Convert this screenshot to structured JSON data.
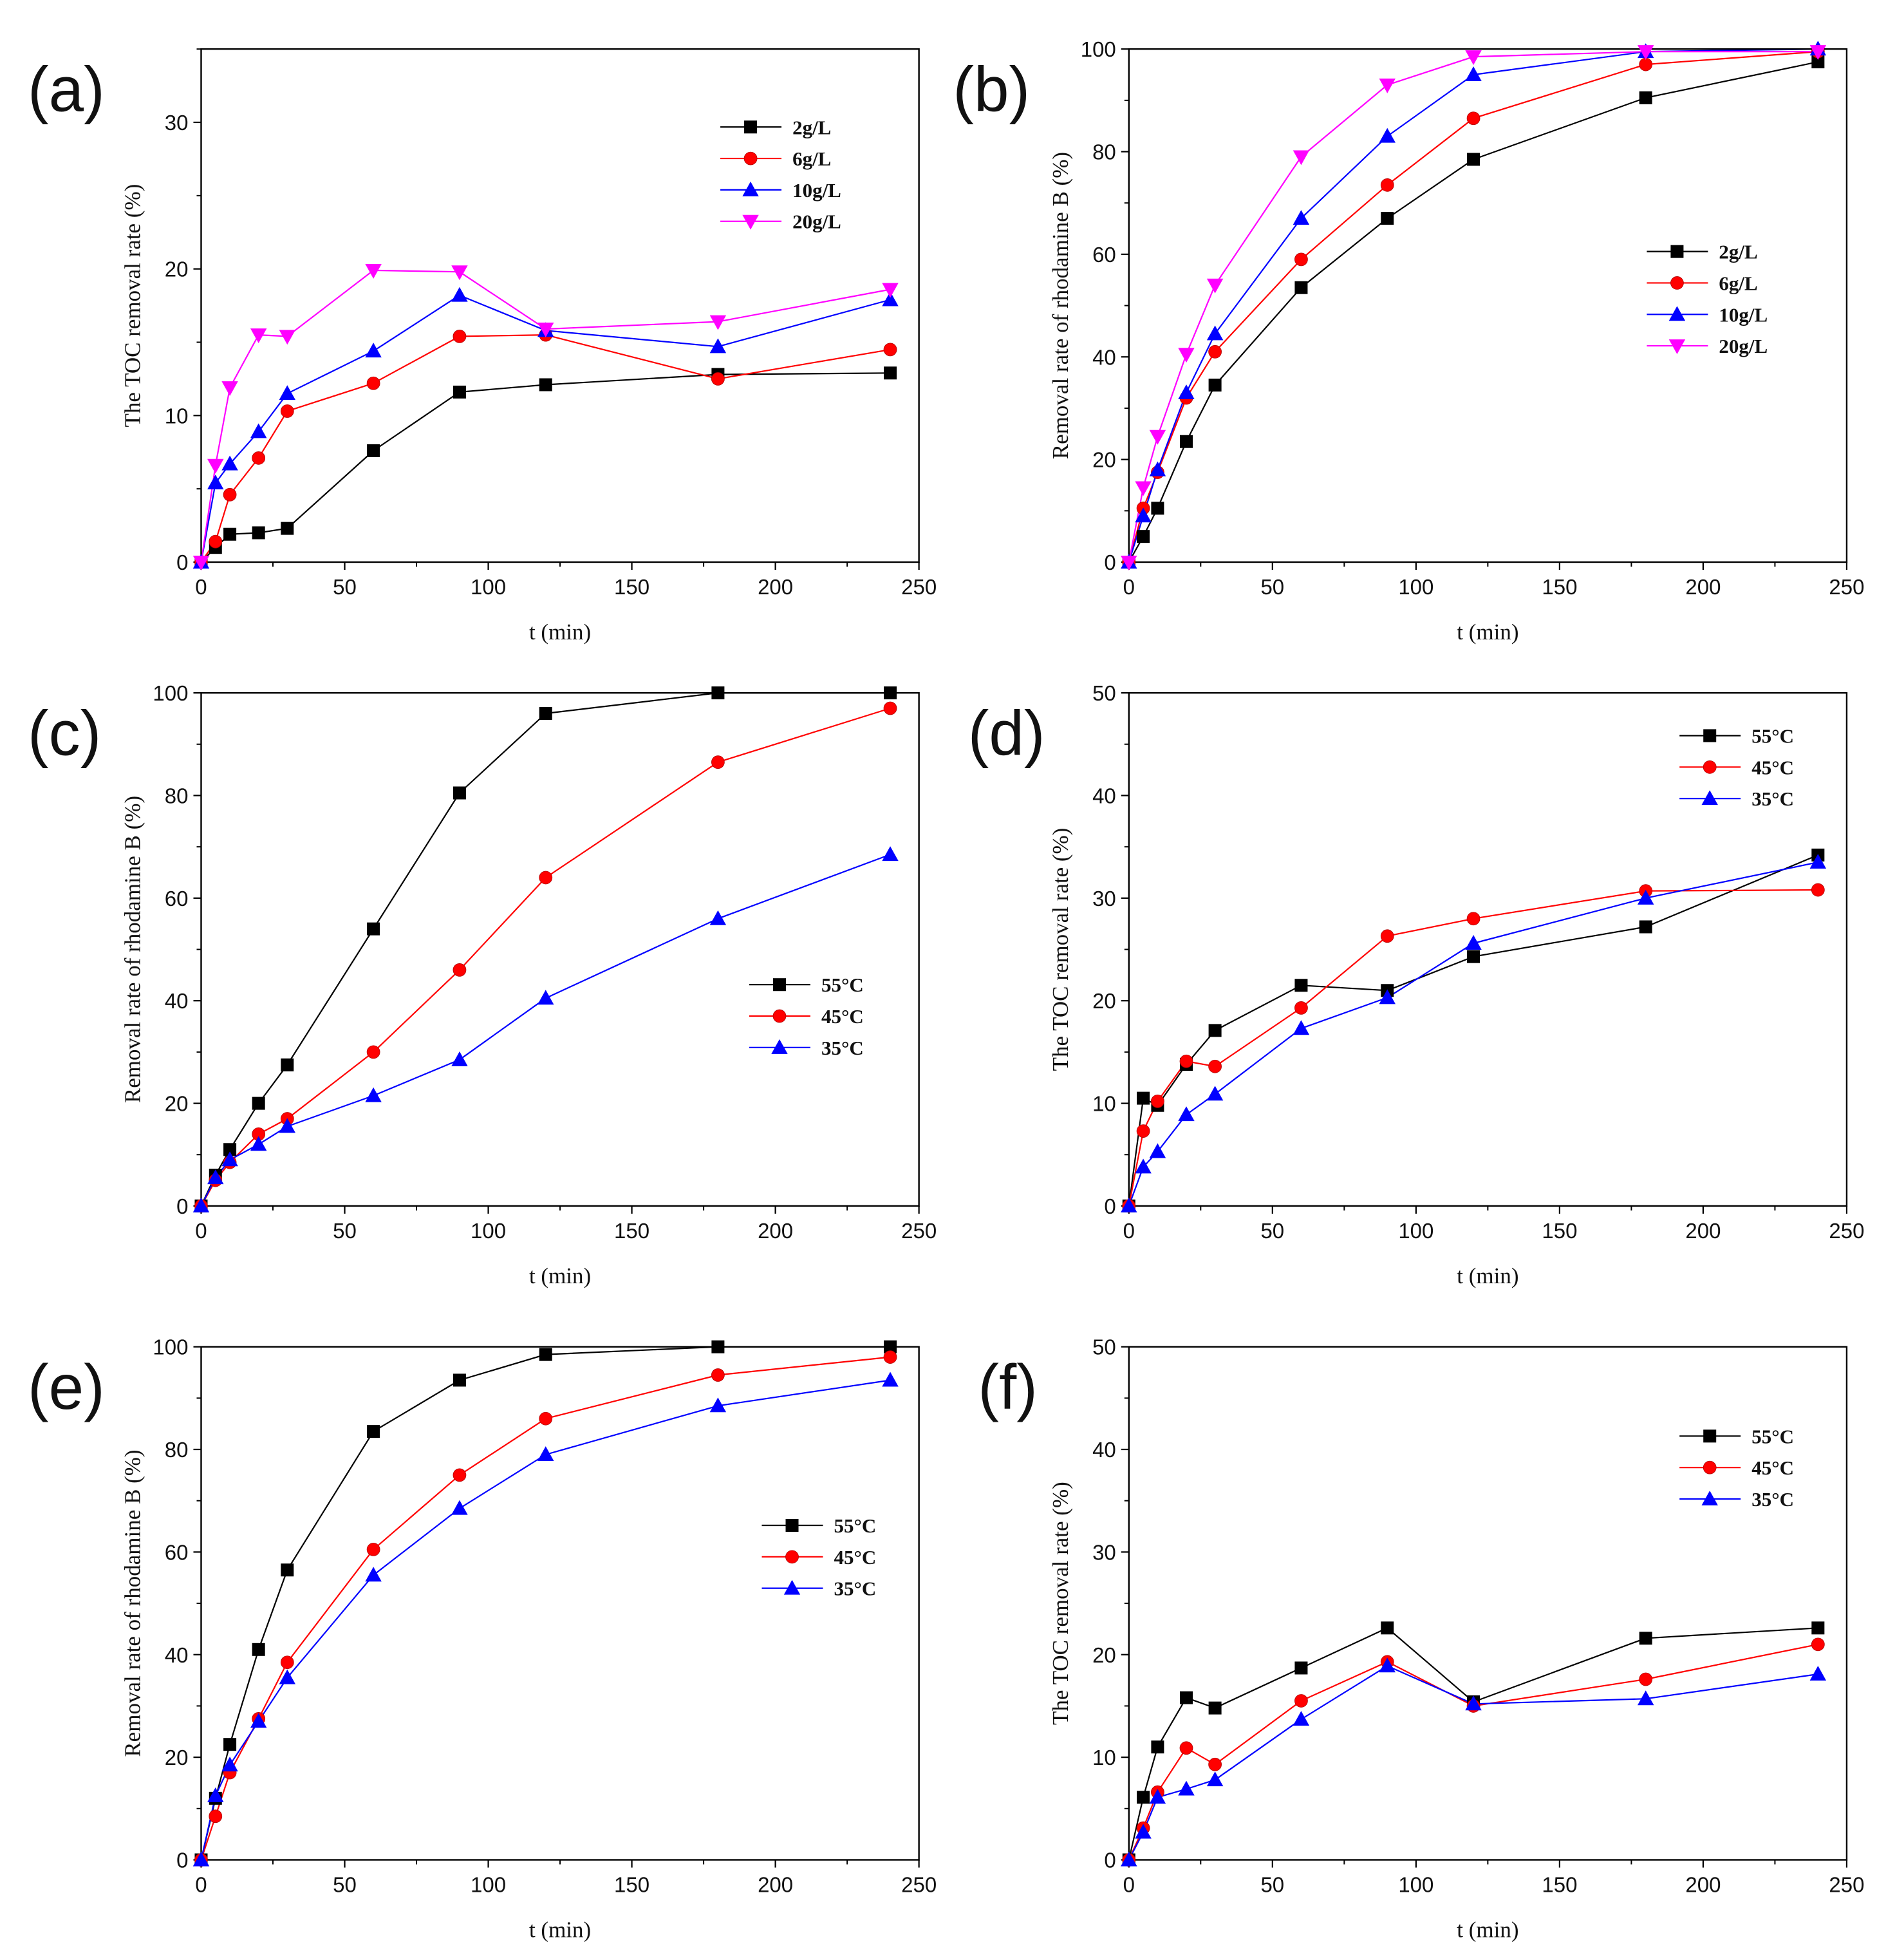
{
  "chart_data": [
    {
      "id": "a",
      "panel_label": "(a)",
      "type": "line",
      "xlabel": "t (min)",
      "ylabel": "The TOC removal rate (%)",
      "xlim": [
        0,
        250
      ],
      "ylim": [
        0,
        35
      ],
      "xticks": [
        0,
        50,
        100,
        150,
        200,
        250
      ],
      "yticks": [
        0,
        10,
        20,
        30
      ],
      "legend_position": "upper-right",
      "series": [
        {
          "name": "2g/L",
          "color": "#000000",
          "marker": "square",
          "x": [
            0,
            5,
            10,
            20,
            30,
            60,
            90,
            120,
            180,
            240
          ],
          "y": [
            0,
            1.0,
            1.9,
            2.0,
            2.3,
            7.6,
            11.6,
            12.1,
            12.8,
            12.9
          ]
        },
        {
          "name": "6g/L",
          "color": "#ff0000",
          "marker": "circle",
          "x": [
            0,
            5,
            10,
            20,
            30,
            60,
            90,
            120,
            180,
            240
          ],
          "y": [
            0,
            1.4,
            4.6,
            7.1,
            10.3,
            12.2,
            15.4,
            15.5,
            12.5,
            14.5
          ]
        },
        {
          "name": "10g/L",
          "color": "#0000ff",
          "marker": "triangle-up",
          "x": [
            0,
            5,
            10,
            20,
            30,
            60,
            90,
            120,
            180,
            240
          ],
          "y": [
            0,
            5.4,
            6.7,
            8.9,
            11.5,
            14.4,
            18.2,
            15.8,
            14.7,
            17.9
          ]
        },
        {
          "name": "20g/L",
          "color": "#ff00ff",
          "marker": "triangle-down",
          "x": [
            0,
            5,
            10,
            20,
            30,
            60,
            90,
            120,
            180,
            240
          ],
          "y": [
            0,
            6.6,
            11.9,
            15.5,
            15.4,
            19.9,
            19.8,
            15.9,
            16.4,
            18.6
          ]
        }
      ]
    },
    {
      "id": "b",
      "panel_label": "(b)",
      "type": "line",
      "xlabel": "t (min)",
      "ylabel": "Removal rate of rhodamine B (%)",
      "xlim": [
        0,
        250
      ],
      "ylim": [
        0,
        100
      ],
      "xticks": [
        0,
        50,
        100,
        150,
        200,
        250
      ],
      "yticks": [
        0,
        20,
        40,
        60,
        80,
        100
      ],
      "legend_position": "center-right",
      "series": [
        {
          "name": "2g/L",
          "color": "#000000",
          "marker": "square",
          "x": [
            0,
            5,
            10,
            20,
            30,
            60,
            90,
            120,
            180,
            240
          ],
          "y": [
            0,
            5,
            10.5,
            23.5,
            34.5,
            53.5,
            67,
            78.5,
            90.5,
            97.5
          ]
        },
        {
          "name": "6g/L",
          "color": "#ff0000",
          "marker": "circle",
          "x": [
            0,
            5,
            10,
            20,
            30,
            60,
            90,
            120,
            180,
            240
          ],
          "y": [
            0,
            10.5,
            17.5,
            32,
            41,
            59,
            73.5,
            86.5,
            97,
            99.5
          ]
        },
        {
          "name": "10g/L",
          "color": "#0000ff",
          "marker": "triangle-up",
          "x": [
            0,
            5,
            10,
            20,
            30,
            60,
            90,
            120,
            180,
            240
          ],
          "y": [
            0,
            9,
            18,
            33,
            44.5,
            67,
            83,
            95,
            99.5,
            100
          ]
        },
        {
          "name": "20g/L",
          "color": "#ff00ff",
          "marker": "triangle-down",
          "x": [
            0,
            5,
            10,
            20,
            30,
            60,
            90,
            120,
            180,
            240
          ],
          "y": [
            0,
            14.5,
            24.5,
            40.5,
            54,
            79,
            93,
            98.5,
            99.5,
            99.5
          ]
        }
      ]
    },
    {
      "id": "c",
      "panel_label": "(c)",
      "type": "line",
      "xlabel": "t (min)",
      "ylabel": "Removal rate of rhodamine B (%)",
      "xlim": [
        0,
        250
      ],
      "ylim": [
        0,
        100
      ],
      "xticks": [
        0,
        50,
        100,
        150,
        200,
        250
      ],
      "yticks": [
        0,
        20,
        40,
        60,
        80,
        100
      ],
      "legend_position": "center-right",
      "series": [
        {
          "name": "55°C",
          "color": "#000000",
          "marker": "square",
          "x": [
            0,
            5,
            10,
            20,
            30,
            60,
            90,
            120,
            180,
            240
          ],
          "y": [
            0,
            6,
            11,
            20,
            27.5,
            54,
            80.5,
            96,
            100,
            100
          ]
        },
        {
          "name": "45°C",
          "color": "#ff0000",
          "marker": "circle",
          "x": [
            0,
            5,
            10,
            20,
            30,
            60,
            90,
            120,
            180,
            240
          ],
          "y": [
            0,
            5,
            8.5,
            14,
            17,
            30,
            46,
            64,
            86.5,
            97
          ]
        },
        {
          "name": "35°C",
          "color": "#0000ff",
          "marker": "triangle-up",
          "x": [
            0,
            5,
            10,
            20,
            30,
            60,
            90,
            120,
            180,
            240
          ],
          "y": [
            0,
            5.5,
            9,
            12,
            15.5,
            21.5,
            28.5,
            40.5,
            56,
            68.5
          ]
        }
      ]
    },
    {
      "id": "d",
      "panel_label": "(d)",
      "type": "line",
      "xlabel": "t (min)",
      "ylabel": "The TOC removal rate (%)",
      "xlim": [
        0,
        250
      ],
      "ylim": [
        0,
        50
      ],
      "xticks": [
        0,
        50,
        100,
        150,
        200,
        250
      ],
      "yticks": [
        0,
        10,
        20,
        30,
        40,
        50
      ],
      "legend_position": "upper-right",
      "series": [
        {
          "name": "55°C",
          "color": "#000000",
          "marker": "square",
          "x": [
            0,
            5,
            10,
            20,
            30,
            60,
            90,
            120,
            180,
            240
          ],
          "y": [
            0,
            10.5,
            9.8,
            13.8,
            17.1,
            21.5,
            21,
            24.3,
            27.2,
            34.2
          ]
        },
        {
          "name": "45°C",
          "color": "#ff0000",
          "marker": "circle",
          "x": [
            0,
            5,
            10,
            20,
            30,
            60,
            90,
            120,
            180,
            240
          ],
          "y": [
            0,
            7.3,
            10.2,
            14.1,
            13.6,
            19.3,
            26.3,
            28,
            30.7,
            30.8
          ]
        },
        {
          "name": "35°C",
          "color": "#0000ff",
          "marker": "triangle-up",
          "x": [
            0,
            5,
            10,
            20,
            30,
            60,
            90,
            120,
            180,
            240
          ],
          "y": [
            0,
            3.8,
            5.3,
            8.9,
            10.9,
            17.3,
            20.3,
            25.6,
            30,
            33.5
          ]
        }
      ]
    },
    {
      "id": "e",
      "panel_label": "(e)",
      "type": "line",
      "xlabel": "t (min)",
      "ylabel": "Removal rate of rhodamine B (%)",
      "xlim": [
        0,
        250
      ],
      "ylim": [
        0,
        100
      ],
      "xticks": [
        0,
        50,
        100,
        150,
        200,
        250
      ],
      "yticks": [
        0,
        20,
        40,
        60,
        80,
        100
      ],
      "legend_position": "center-right",
      "series": [
        {
          "name": "55°C",
          "color": "#000000",
          "marker": "square",
          "x": [
            0,
            5,
            10,
            20,
            30,
            60,
            90,
            120,
            180,
            240
          ],
          "y": [
            0,
            12,
            22.5,
            41,
            56.5,
            83.5,
            93.5,
            98.5,
            100,
            100
          ]
        },
        {
          "name": "45°C",
          "color": "#ff0000",
          "marker": "circle",
          "x": [
            0,
            5,
            10,
            20,
            30,
            60,
            90,
            120,
            180,
            240
          ],
          "y": [
            0,
            8.5,
            17,
            27.5,
            38.5,
            60.5,
            75,
            86,
            94.5,
            98
          ]
        },
        {
          "name": "35°C",
          "color": "#0000ff",
          "marker": "triangle-up",
          "x": [
            0,
            5,
            10,
            20,
            30,
            60,
            90,
            120,
            180,
            240
          ],
          "y": [
            0,
            12.5,
            18.5,
            27,
            35.5,
            55.5,
            68.5,
            79,
            88.5,
            93.5
          ]
        }
      ]
    },
    {
      "id": "f",
      "panel_label": "(f)",
      "type": "line",
      "xlabel": "t (min)",
      "ylabel": "The TOC removal rate (%)",
      "xlim": [
        0,
        250
      ],
      "ylim": [
        0,
        50
      ],
      "xticks": [
        0,
        50,
        100,
        150,
        200,
        250
      ],
      "yticks": [
        0,
        10,
        20,
        30,
        40,
        50
      ],
      "legend_position": "upper-right",
      "series": [
        {
          "name": "55°C",
          "color": "#000000",
          "marker": "square",
          "x": [
            0,
            5,
            10,
            20,
            30,
            60,
            90,
            120,
            180,
            240
          ],
          "y": [
            0,
            6.1,
            11,
            15.8,
            14.8,
            18.7,
            22.6,
            15.4,
            21.6,
            22.6
          ]
        },
        {
          "name": "45°C",
          "color": "#ff0000",
          "marker": "circle",
          "x": [
            0,
            5,
            10,
            20,
            30,
            60,
            90,
            120,
            180,
            240
          ],
          "y": [
            0,
            3.1,
            6.6,
            10.9,
            9.3,
            15.5,
            19.3,
            15,
            17.6,
            21
          ]
        },
        {
          "name": "35°C",
          "color": "#0000ff",
          "marker": "triangle-up",
          "x": [
            0,
            5,
            10,
            20,
            30,
            60,
            90,
            120,
            180,
            240
          ],
          "y": [
            0,
            2.7,
            6.1,
            6.9,
            7.8,
            13.7,
            18.9,
            15.2,
            15.7,
            18.1
          ]
        }
      ]
    }
  ]
}
